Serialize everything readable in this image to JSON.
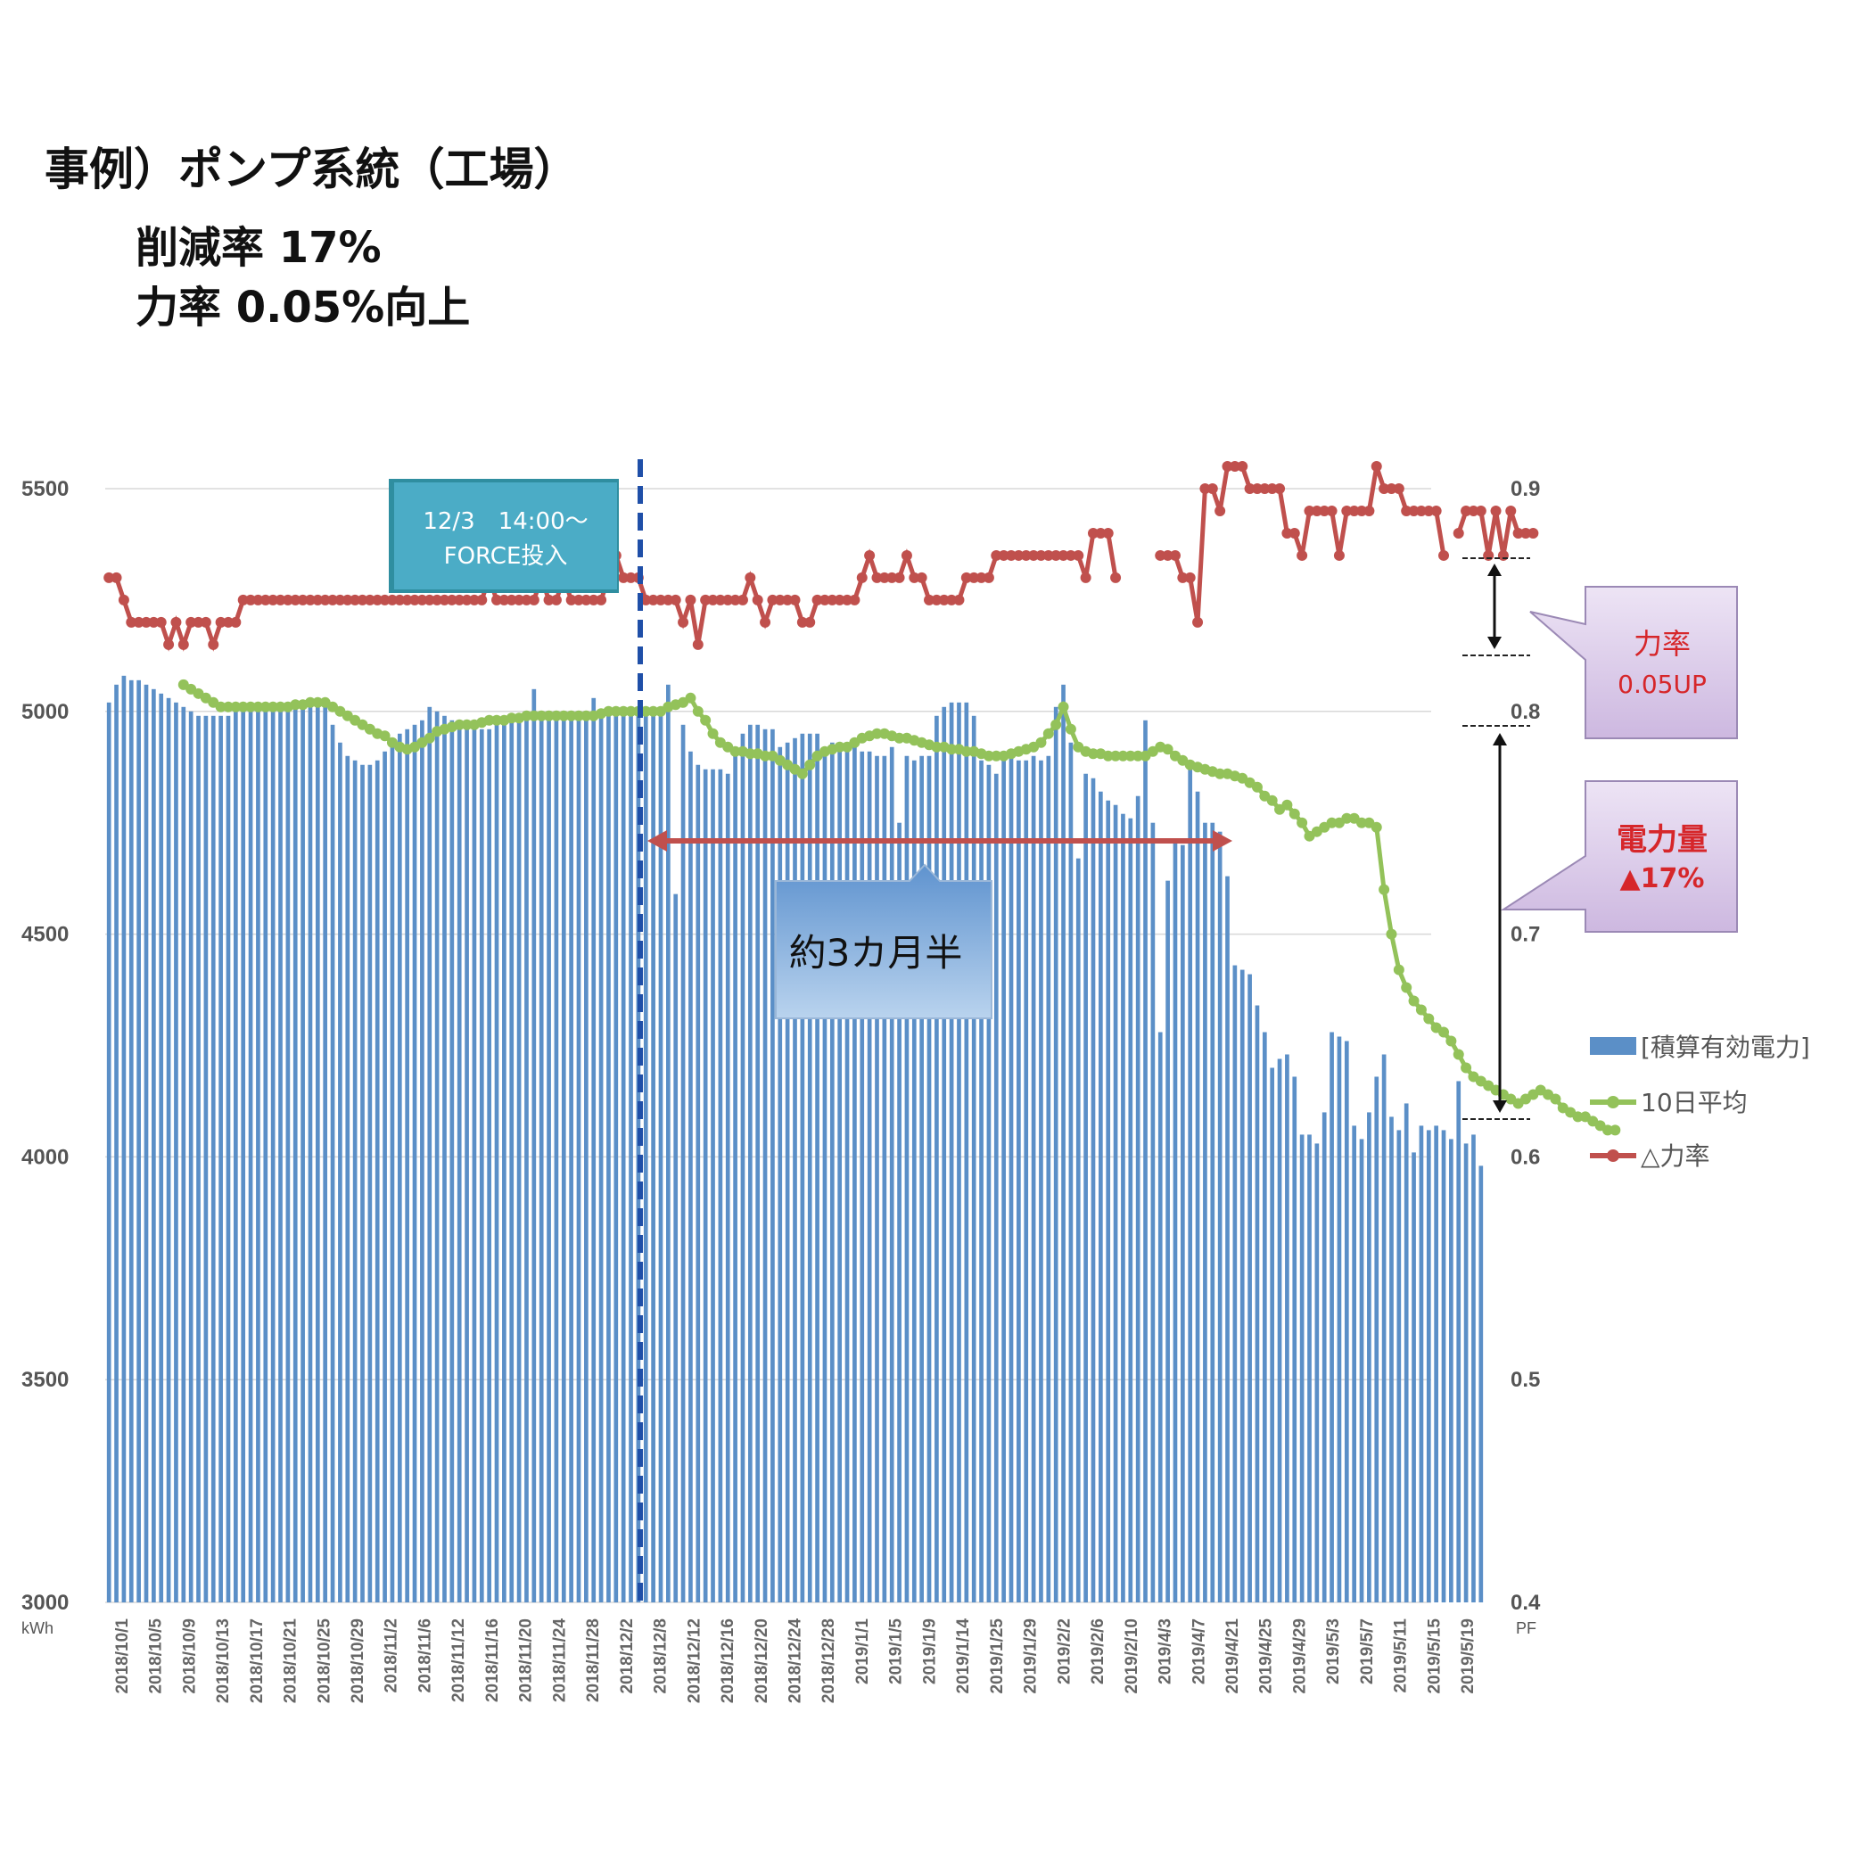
{
  "header": {
    "title": "事例）ポンプ系統（工場）",
    "line1": "削減率 17%",
    "line2": "力率 0.05%向上"
  },
  "annotations": {
    "force_line1": "12/3　14:00〜",
    "force_line2": "FORCE投入",
    "duration": "約3カ月半",
    "pf_label": "力率",
    "pf_value": "0.05UP",
    "power_label": "電力量",
    "power_value": "▲17%"
  },
  "colors": {
    "bar": "#5b8fc7",
    "avg": "#93c25a",
    "pf": "#c0504d",
    "vline": "#1f4fa8",
    "teal_box": "#4bacc6",
    "purple_box": "#d9c7e8"
  },
  "chart_data": {
    "type": "bar",
    "left_axis_unit": "kWh",
    "right_axis_unit": "PF",
    "ylim": [
      3000,
      5500
    ],
    "y_ticks": [
      "5500",
      "5000",
      "4500",
      "4000",
      "3500",
      "3000"
    ],
    "y2lim": [
      0.4,
      0.9
    ],
    "y2_ticks": [
      "0.9",
      "0.8",
      "0.7",
      "0.6",
      "0.5",
      "0.4"
    ],
    "x_tick_labels": [
      "2018/10/1",
      "2018/10/5",
      "2018/10/9",
      "2018/10/13",
      "2018/10/17",
      "2018/10/21",
      "2018/10/25",
      "2018/10/29",
      "2018/11/2",
      "2018/11/6",
      "2018/11/12",
      "2018/11/16",
      "2018/11/20",
      "2018/11/24",
      "2018/11/28",
      "2018/12/2",
      "2018/12/8",
      "2018/12/12",
      "2018/12/16",
      "2018/12/20",
      "2018/12/24",
      "2018/12/28",
      "2019/1/1",
      "2019/1/5",
      "2019/1/9",
      "2019/1/14",
      "2019/1/25",
      "2019/1/29",
      "2019/2/2",
      "2019/2/6",
      "2019/2/10",
      "2019/4/3",
      "2019/4/7",
      "2019/4/21",
      "2019/4/25",
      "2019/4/29",
      "2019/5/3",
      "2019/5/7",
      "2019/5/11",
      "2019/5/15",
      "2019/5/19"
    ],
    "series": [
      {
        "name": "[積算有効電力]",
        "kind": "bar",
        "axis": "left",
        "values": [
          5020,
          5060,
          5080,
          5070,
          5070,
          5060,
          5050,
          5040,
          5030,
          5020,
          5010,
          5000,
          4990,
          4990,
          4990,
          4990,
          4990,
          5010,
          5010,
          5010,
          5010,
          5010,
          5020,
          5020,
          5020,
          5020,
          5020,
          5020,
          5020,
          5010,
          4970,
          4930,
          4900,
          4890,
          4880,
          4880,
          4890,
          4910,
          4930,
          4950,
          4960,
          4970,
          4980,
          5010,
          5000,
          4990,
          4980,
          4960,
          4960,
          4960,
          4960,
          4960,
          4970,
          4970,
          4980,
          4980,
          4980,
          5050,
          4990,
          4990,
          4990,
          4990,
          4990,
          4990,
          4990,
          5030,
          5000,
          5000,
          5000,
          5000,
          5010,
          5010,
          5010,
          5000,
          5000,
          5060,
          4590,
          4970,
          4910,
          4880,
          4870,
          4870,
          4870,
          4860,
          4920,
          4950,
          4970,
          4970,
          4960,
          4960,
          4920,
          4930,
          4940,
          4950,
          4950,
          4950,
          4920,
          4930,
          4910,
          4910,
          4920,
          4910,
          4910,
          4900,
          4900,
          4920,
          4750,
          4900,
          4890,
          4900,
          4900,
          4990,
          5010,
          5020,
          5020,
          5020,
          4990,
          4890,
          4880,
          4860,
          4900,
          4900,
          4890,
          4890,
          4900,
          4890,
          4900,
          5010,
          5060,
          4930,
          4670,
          4860,
          4850,
          4820,
          4800,
          4790,
          4770,
          4760,
          4810,
          4980,
          4750,
          4280,
          4620,
          4710,
          4700,
          4870,
          4820,
          4750,
          4750,
          4730,
          4630,
          4430,
          4420,
          4410,
          4340,
          4280,
          4200,
          4220,
          4230,
          4180,
          4050,
          4050,
          4030,
          4100,
          4280,
          4270,
          4260,
          4070,
          4040,
          4100,
          4180,
          4230,
          4090,
          4060,
          4120,
          4010,
          4070,
          4060,
          4070,
          4060,
          4040,
          4170,
          4030,
          4050,
          3980
        ]
      },
      {
        "name": "10日平均",
        "kind": "line",
        "axis": "left",
        "values": [
          null,
          null,
          null,
          null,
          null,
          null,
          null,
          null,
          null,
          null,
          5060,
          5050,
          5040,
          5030,
          5020,
          5010,
          5010,
          5010,
          5010,
          5010,
          5010,
          5010,
          5010,
          5010,
          5010,
          5015,
          5015,
          5020,
          5020,
          5020,
          5010,
          5000,
          4990,
          4980,
          4970,
          4960,
          4950,
          4945,
          4930,
          4920,
          4915,
          4920,
          4930,
          4940,
          4955,
          4960,
          4965,
          4970,
          4970,
          4970,
          4975,
          4980,
          4980,
          4980,
          4985,
          4985,
          4990,
          4990,
          4990,
          4990,
          4990,
          4990,
          4990,
          4990,
          4990,
          4990,
          4995,
          5000,
          5000,
          5000,
          5000,
          5000,
          5000,
          5000,
          5000,
          5010,
          5015,
          5020,
          5030,
          5000,
          4980,
          4950,
          4930,
          4920,
          4910,
          4910,
          4905,
          4905,
          4900,
          4900,
          4890,
          4880,
          4870,
          4860,
          4880,
          4900,
          4910,
          4915,
          4920,
          4920,
          4930,
          4940,
          4945,
          4950,
          4950,
          4945,
          4940,
          4940,
          4935,
          4930,
          4925,
          4920,
          4920,
          4915,
          4915,
          4910,
          4910,
          4905,
          4900,
          4900,
          4900,
          4905,
          4910,
          4915,
          4920,
          4930,
          4950,
          4970,
          5010,
          4960,
          4920,
          4910,
          4905,
          4905,
          4900,
          4900,
          4900,
          4900,
          4900,
          4900,
          4910,
          4920,
          4915,
          4900,
          4890,
          4880,
          4875,
          4870,
          4865,
          4860,
          4860,
          4855,
          4850,
          4840,
          4830,
          4810,
          4800,
          4780,
          4790,
          4770,
          4750,
          4720,
          4730,
          4740,
          4750,
          4750,
          4760,
          4760,
          4750,
          4750,
          4740,
          4600,
          4500,
          4420,
          4380,
          4350,
          4330,
          4310,
          4290,
          4280,
          4260,
          4230,
          4200,
          4180,
          4170,
          4160,
          4150,
          4140,
          4130,
          4120,
          4130,
          4140,
          4150,
          4140,
          4130,
          4110,
          4100,
          4090,
          4090,
          4080,
          4070,
          4060,
          4060
        ]
      },
      {
        "name": "△力率",
        "kind": "line",
        "axis": "right",
        "values": [
          0.86,
          0.86,
          0.85,
          0.84,
          0.84,
          0.84,
          0.84,
          0.84,
          0.83,
          0.84,
          0.83,
          0.84,
          0.84,
          0.84,
          0.83,
          0.84,
          0.84,
          0.84,
          0.85,
          0.85,
          0.85,
          0.85,
          0.85,
          0.85,
          0.85,
          0.85,
          0.85,
          0.85,
          0.85,
          0.85,
          0.85,
          0.85,
          0.85,
          0.85,
          0.85,
          0.85,
          0.85,
          0.85,
          0.85,
          0.85,
          0.85,
          0.85,
          0.85,
          0.85,
          0.85,
          0.85,
          0.85,
          0.85,
          0.85,
          0.85,
          0.85,
          0.86,
          0.85,
          0.85,
          0.85,
          0.85,
          0.85,
          0.85,
          0.86,
          0.85,
          0.85,
          0.86,
          0.85,
          0.85,
          0.85,
          0.85,
          0.85,
          0.86,
          0.87,
          0.86,
          0.86,
          0.86,
          0.85,
          0.85,
          0.85,
          0.85,
          0.85,
          0.84,
          0.85,
          0.83,
          0.85,
          0.85,
          0.85,
          0.85,
          0.85,
          0.85,
          0.86,
          0.85,
          0.84,
          0.85,
          0.85,
          0.85,
          0.85,
          0.84,
          0.84,
          0.85,
          0.85,
          0.85,
          0.85,
          0.85,
          0.85,
          0.86,
          0.87,
          0.86,
          0.86,
          0.86,
          0.86,
          0.87,
          0.86,
          0.86,
          0.85,
          0.85,
          0.85,
          0.85,
          0.85,
          0.86,
          0.86,
          0.86,
          0.86,
          0.87,
          0.87,
          0.87,
          0.87,
          0.87,
          0.87,
          0.87,
          0.87,
          0.87,
          0.87,
          0.87,
          0.87,
          0.86,
          0.88,
          0.88,
          0.88,
          0.86,
          null,
          null,
          null,
          null,
          null,
          0.87,
          0.87,
          0.87,
          0.86,
          0.86,
          0.84,
          0.9,
          0.9,
          0.89,
          0.91,
          0.91,
          0.91,
          0.9,
          0.9,
          0.9,
          0.9,
          0.9,
          0.88,
          0.88,
          0.87,
          0.89,
          0.89,
          0.89,
          0.89,
          0.87,
          0.89,
          0.89,
          0.89,
          0.89,
          0.91,
          0.9,
          0.9,
          0.9,
          0.89,
          0.89,
          0.89,
          0.89,
          0.89,
          0.87,
          null,
          0.88,
          0.89,
          0.89,
          0.89,
          0.87,
          0.89,
          0.87,
          0.89,
          0.88,
          0.88,
          0.88
        ]
      }
    ],
    "grid": true,
    "legend_position": "right"
  }
}
